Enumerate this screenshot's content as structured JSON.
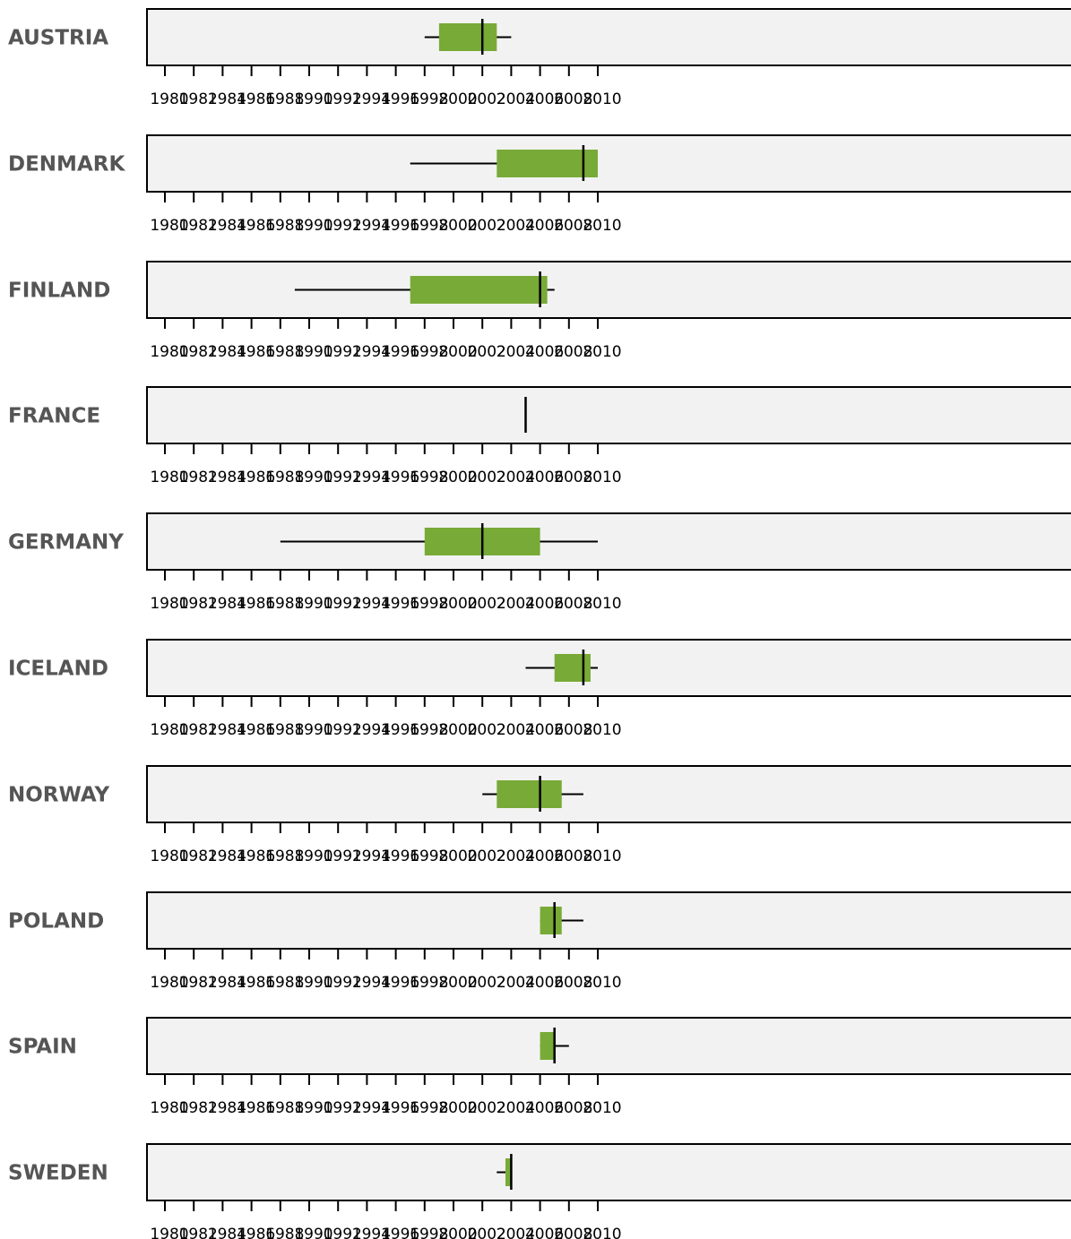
{
  "chart_data": {
    "type": "box",
    "x_ticks": [
      1980,
      1982,
      1984,
      1986,
      1988,
      1990,
      1992,
      1994,
      1996,
      1998,
      2000,
      2002,
      2004,
      2006,
      2008,
      2010
    ],
    "xlim": [
      1979.5,
      2011.3
    ],
    "panel_background": "#f2f2f2",
    "box_color": "#78aa37",
    "line_color": "#000000",
    "label_color": "#555555",
    "rows": [
      {
        "country": "AUSTRIA",
        "whisker_low": 1998,
        "box_low": 1999,
        "median": 2002,
        "box_high": 2003,
        "whisker_high": 2004
      },
      {
        "country": "DENMARK",
        "whisker_low": 1997,
        "box_low": 2003,
        "median": 2009,
        "box_high": 2010,
        "whisker_high": 2010
      },
      {
        "country": "FINLAND",
        "whisker_low": 1989,
        "box_low": 1997,
        "median": 2006,
        "box_high": 2006.5,
        "whisker_high": 2007
      },
      {
        "country": "FRANCE",
        "whisker_low": 2005,
        "box_low": 2005,
        "median": 2005,
        "box_high": 2005,
        "whisker_high": 2005
      },
      {
        "country": "GERMANY",
        "whisker_low": 1988,
        "box_low": 1998,
        "median": 2002,
        "box_high": 2006,
        "whisker_high": 2010
      },
      {
        "country": "ICELAND",
        "whisker_low": 2005,
        "box_low": 2007,
        "median": 2009,
        "box_high": 2009.5,
        "whisker_high": 2010
      },
      {
        "country": "NORWAY",
        "whisker_low": 2002,
        "box_low": 2003,
        "median": 2006,
        "box_high": 2007.5,
        "whisker_high": 2009
      },
      {
        "country": "POLAND",
        "whisker_low": 2006,
        "box_low": 2006,
        "median": 2007,
        "box_high": 2007.5,
        "whisker_high": 2009
      },
      {
        "country": "SPAIN",
        "whisker_low": 2006,
        "box_low": 2006,
        "median": 2007,
        "box_high": 2007,
        "whisker_high": 2008
      },
      {
        "country": "SWEDEN",
        "whisker_low": 2003,
        "box_low": 2003.6,
        "median": 2004,
        "box_high": 2004,
        "whisker_high": 2004
      }
    ]
  }
}
